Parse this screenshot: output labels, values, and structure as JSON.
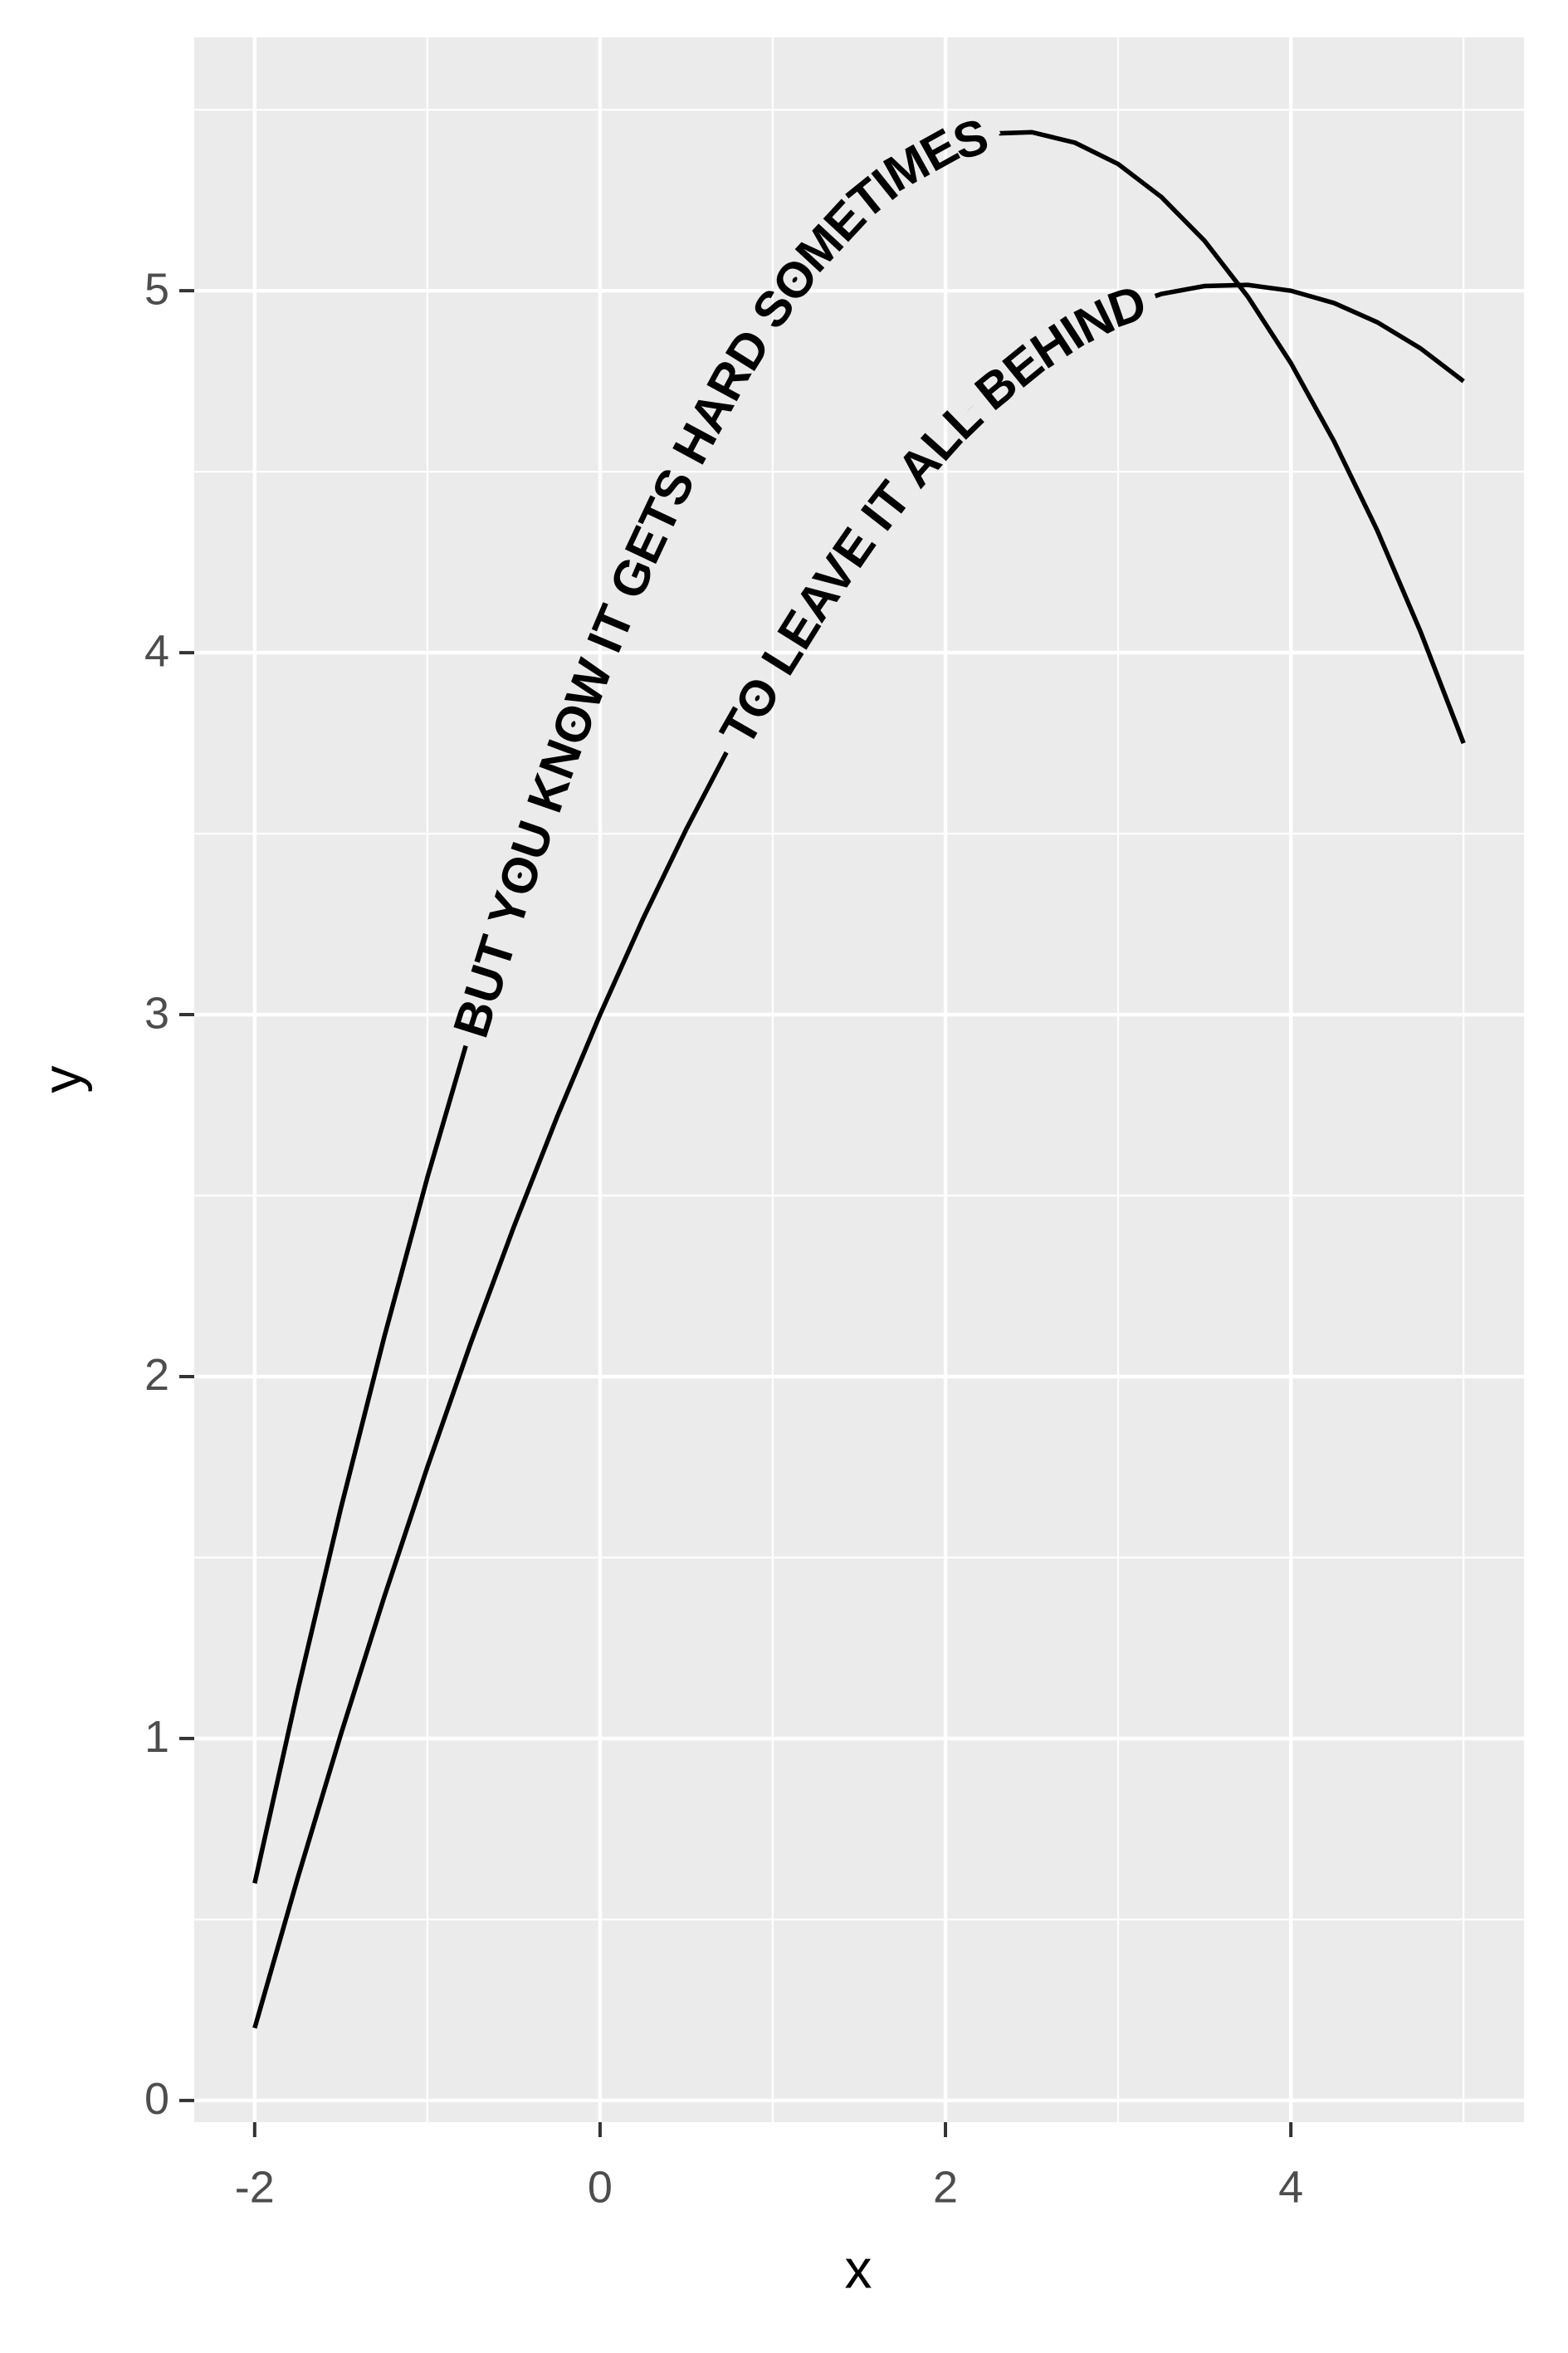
{
  "chart_data": {
    "type": "line",
    "x": [
      -2,
      -1.75,
      -1.5,
      -1.25,
      -1,
      -0.75,
      -0.5,
      -0.25,
      0,
      0.25,
      0.5,
      0.75,
      1,
      1.25,
      1.5,
      1.75,
      2,
      2.25,
      2.5,
      2.75,
      3,
      3.25,
      3.5,
      3.75,
      4,
      4.25,
      4.5,
      4.75,
      5
    ],
    "series": [
      {
        "name": "BUT YOU KNOW IT GETS HARD SOMETIMES",
        "color": "#000000",
        "values": [
          0.6,
          1.134,
          1.638,
          2.109,
          2.55,
          2.959,
          3.338,
          3.684,
          4,
          4.284,
          4.538,
          4.759,
          4.95,
          5.109,
          5.238,
          5.334,
          5.4,
          5.434,
          5.438,
          5.409,
          5.35,
          5.259,
          5.138,
          4.984,
          4.8,
          4.584,
          4.338,
          4.059,
          3.75
        ]
      },
      {
        "name": "TO LEAVE IT ALL BEHIND",
        "color": "#000000",
        "values": [
          0.2,
          0.616,
          1.013,
          1.391,
          1.75,
          2.091,
          2.413,
          2.716,
          3,
          3.266,
          3.513,
          3.741,
          3.95,
          4.141,
          4.313,
          4.466,
          4.6,
          4.716,
          4.813,
          4.891,
          4.95,
          4.991,
          5.013,
          5.016,
          5,
          4.966,
          4.913,
          4.841,
          4.75
        ]
      }
    ],
    "x_label": "x",
    "y_label": "y",
    "xlim": [
      -2.35,
      5.35
    ],
    "xticks": [
      -2,
      0,
      2,
      4
    ],
    "xminor": [
      -1,
      1,
      3,
      5
    ],
    "ylim": [
      -0.06,
      5.7
    ],
    "yticks": [
      0,
      1,
      2,
      3,
      4,
      5
    ],
    "yminor": [
      0.5,
      1.5,
      2.5,
      3.5,
      4.5,
      5.5
    ],
    "grid": true
  }
}
